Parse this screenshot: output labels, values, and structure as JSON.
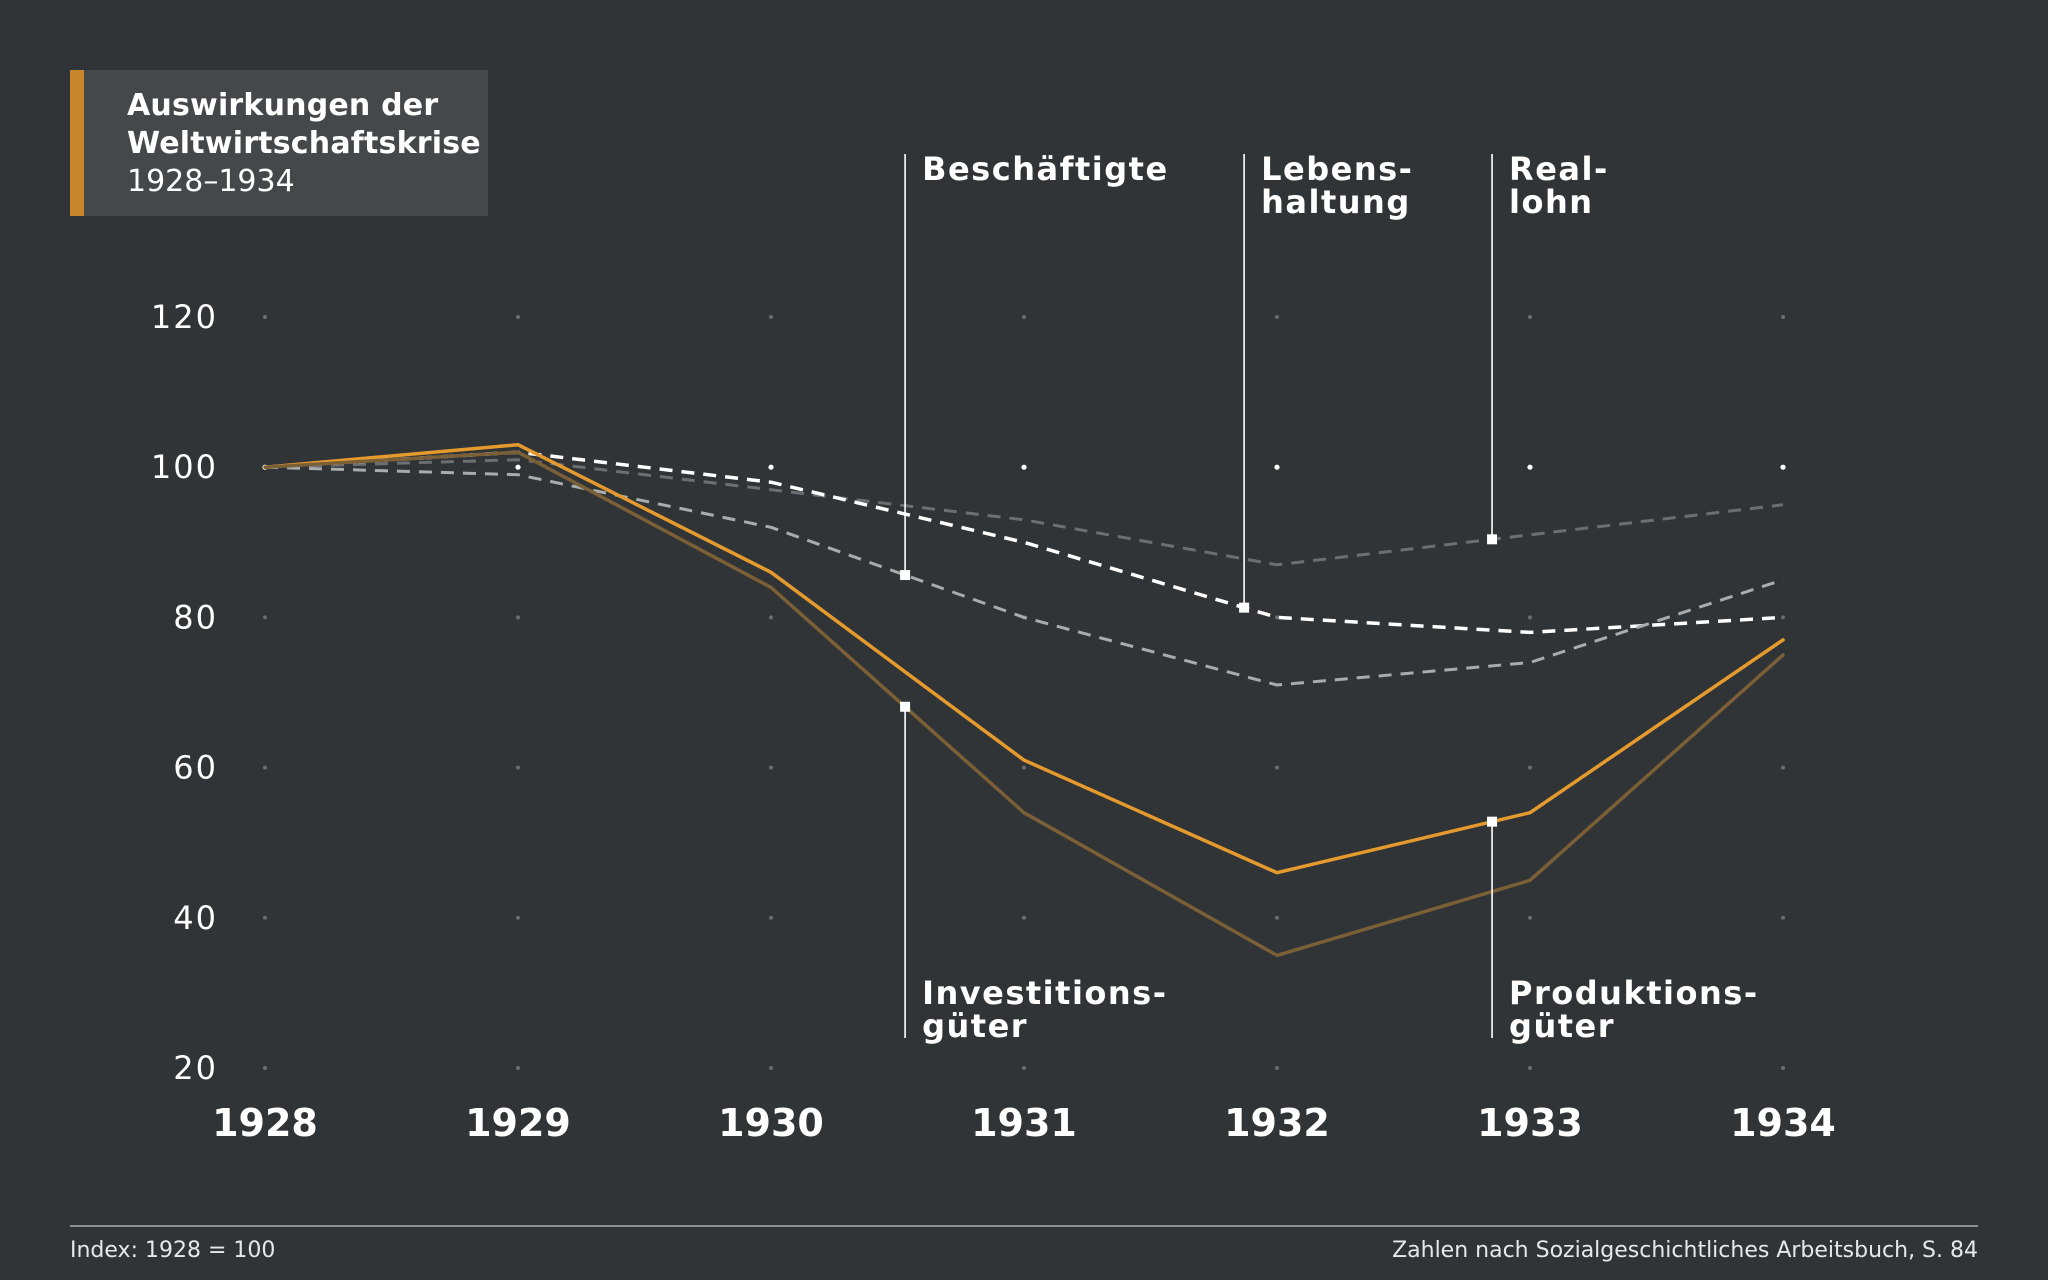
{
  "title": {
    "line1": "Auswirkungen der",
    "line2": "Weltwirtschaftskrise",
    "subtitle": "1928–1934"
  },
  "footer": {
    "left": "Index: 1928 = 100",
    "right": "Zahlen nach Sozialgeschichtliches Arbeitsbuch, S. 84"
  },
  "colors": {
    "background": "#303437",
    "accent": "#c8862c",
    "title_box": "#45484b"
  },
  "chart_data": {
    "type": "line",
    "x": [
      1928,
      1929,
      1930,
      1931,
      1932,
      1933,
      1934
    ],
    "x_tick_labels": [
      "1928",
      "1929",
      "1930",
      "1931",
      "1932",
      "1933",
      "1934"
    ],
    "y_ticks": [
      20,
      40,
      60,
      80,
      100,
      120
    ],
    "y_tick_labels": [
      "20",
      "40",
      "60",
      "80",
      "100",
      "120"
    ],
    "ylim": [
      20,
      120
    ],
    "xlim": [
      1928,
      1934
    ],
    "grid": "dots",
    "series": [
      {
        "name": "Reallohn",
        "label_lines": [
          "Real-",
          "lohn"
        ],
        "values": [
          100,
          101,
          97,
          93,
          87,
          91,
          95
        ],
        "color": "#6c6f72",
        "dash": true,
        "width": 3,
        "label_x": 1932.85,
        "label_pos": "top"
      },
      {
        "name": "Lebenshaltung",
        "label_lines": [
          "Lebens-",
          "haltung"
        ],
        "values": [
          100,
          102,
          98,
          90,
          80,
          78,
          80
        ],
        "color": "#ffffff",
        "dash": true,
        "width": 3.5,
        "label_x": 1931.87,
        "label_pos": "top"
      },
      {
        "name": "Beschäftigte",
        "label_lines": [
          "Beschäftigte"
        ],
        "values": [
          100,
          99,
          92,
          80,
          71,
          74,
          85
        ],
        "color": "#a9abad",
        "dash": true,
        "width": 3,
        "label_x": 1930.53,
        "label_pos": "top"
      },
      {
        "name": "Produktionsgüter",
        "label_lines": [
          "Produktions-",
          "güter"
        ],
        "values": [
          100,
          103,
          86,
          61,
          46,
          54,
          77
        ],
        "color": "#e59a2e",
        "dash": false,
        "width": 3.5,
        "label_x": 1932.85,
        "label_pos": "bottom"
      },
      {
        "name": "Investitionsgüter",
        "label_lines": [
          "Investitions-",
          "güter"
        ],
        "values": [
          100,
          102,
          84,
          54,
          35,
          45,
          75
        ],
        "color": "#7a5f37",
        "dash": false,
        "width": 3.5,
        "label_x": 1930.53,
        "label_pos": "bottom"
      }
    ]
  }
}
